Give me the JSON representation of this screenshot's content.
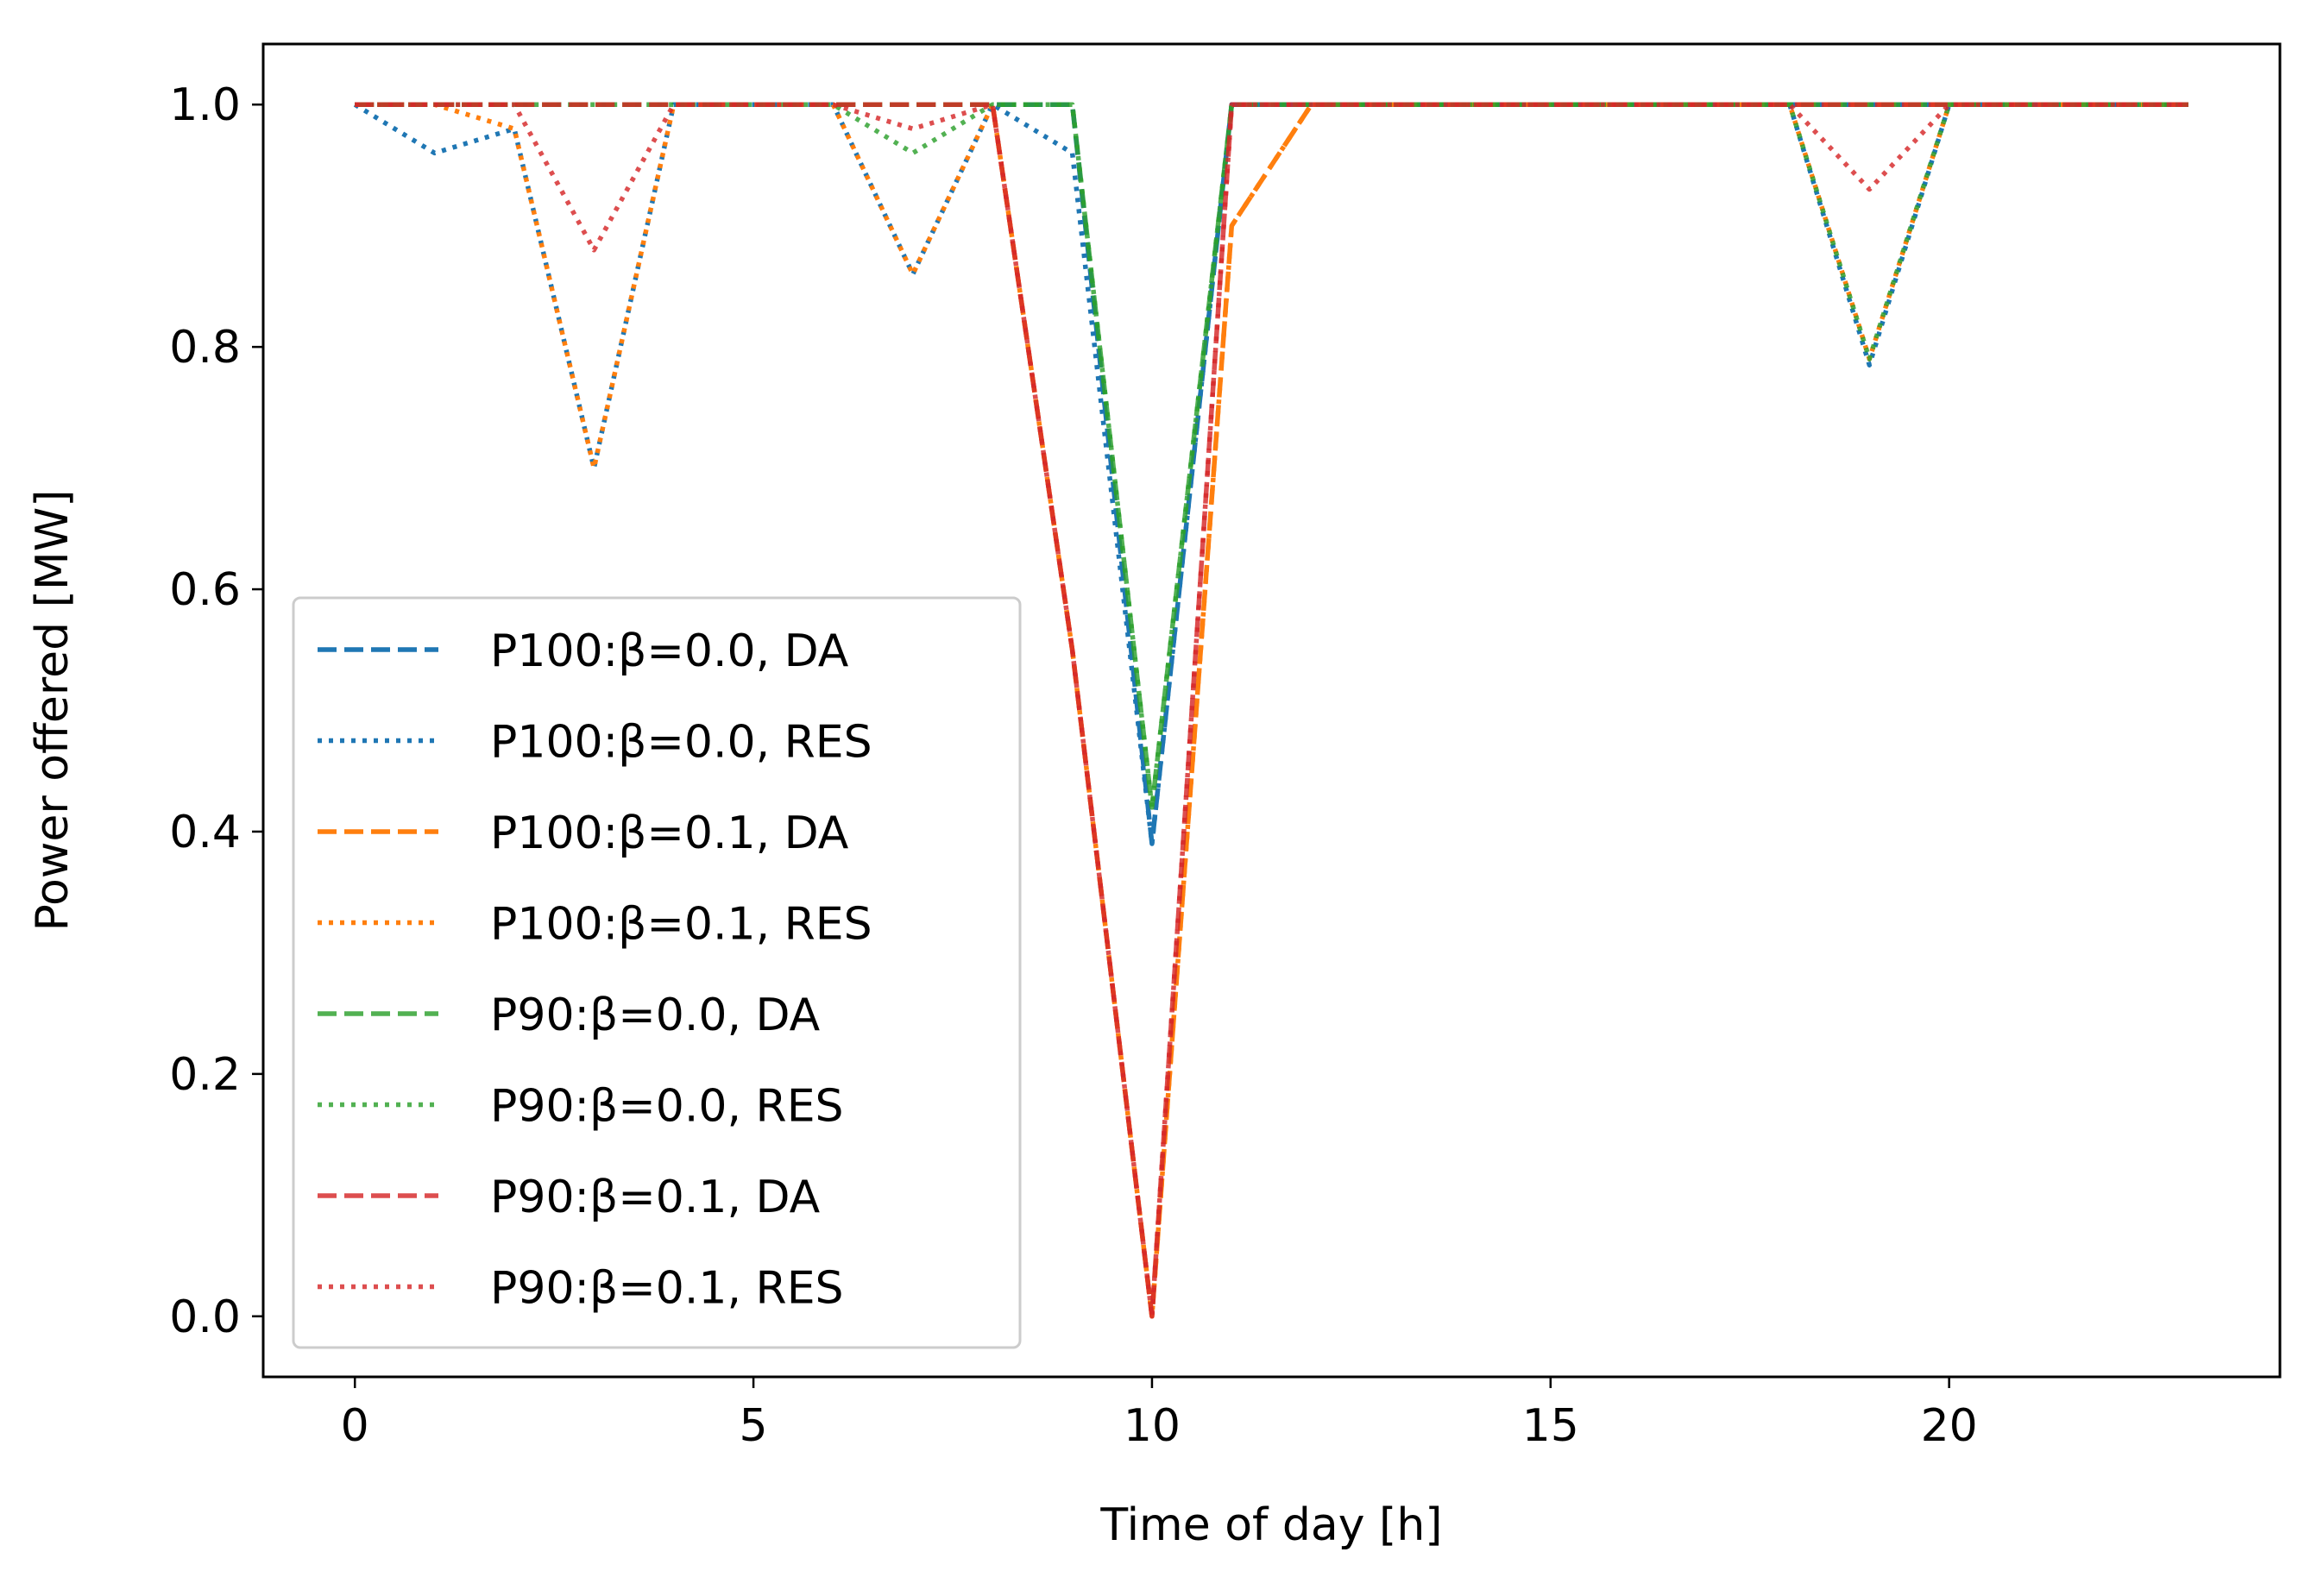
{
  "chart_data": {
    "type": "line",
    "title": "",
    "xlabel": "Time of day [h]",
    "ylabel": "Power offered [MW]",
    "xlim": [
      -1.15,
      24.15
    ],
    "ylim": [
      -0.05,
      1.05
    ],
    "xticks": [
      0,
      5,
      10,
      15,
      20
    ],
    "yticks": [
      0.0,
      0.2,
      0.4,
      0.6,
      0.8,
      1.0
    ],
    "xtick_labels": [
      "0",
      "5",
      "10",
      "15",
      "20"
    ],
    "ytick_labels": [
      "0.0",
      "0.2",
      "0.4",
      "0.6",
      "0.8",
      "1.0"
    ],
    "grid": false,
    "legend_position": "lower-left",
    "x": [
      0,
      1,
      2,
      3,
      4,
      5,
      6,
      7,
      8,
      9,
      10,
      11,
      12,
      13,
      14,
      15,
      16,
      17,
      18,
      19,
      20,
      21,
      22,
      23
    ],
    "series": [
      {
        "name": "P100:β=0.0, DA",
        "color": "#1f77b4",
        "style": "dashed",
        "values": [
          1,
          1,
          1,
          1,
          1,
          1,
          1,
          1,
          1,
          1,
          0.39,
          1,
          1,
          1,
          1,
          1,
          1,
          1,
          1,
          1,
          1,
          1,
          1,
          1
        ]
      },
      {
        "name": "P100:β=0.0, RES",
        "color": "#1f77b4",
        "style": "dotted",
        "values": [
          1,
          0.96,
          0.98,
          0.7,
          1,
          1,
          1,
          0.86,
          1,
          0.96,
          0.39,
          1,
          1,
          1,
          1,
          1,
          1,
          1,
          1,
          0.785,
          1,
          1,
          1,
          1
        ]
      },
      {
        "name": "P100:β=0.1, DA",
        "color": "#ff7f0e",
        "style": "dashed",
        "values": [
          1,
          1,
          1,
          1,
          1,
          1,
          1,
          1,
          1,
          0.55,
          0.0,
          0.9,
          1,
          1,
          1,
          1,
          1,
          1,
          1,
          1,
          1,
          1,
          1,
          1
        ]
      },
      {
        "name": "P100:β=0.1, RES",
        "color": "#ff7f0e",
        "style": "dotted",
        "values": [
          1,
          1,
          0.98,
          0.7,
          1,
          1,
          1,
          0.86,
          1,
          0.55,
          0.0,
          0.9,
          1,
          1,
          1,
          1,
          1,
          1,
          1,
          0.79,
          1,
          1,
          1,
          1
        ]
      },
      {
        "name": "P90:β=0.0, DA",
        "color": "#2ca02c",
        "style": "dashed",
        "values": [
          1,
          1,
          1,
          1,
          1,
          1,
          1,
          1,
          1,
          1,
          0.42,
          1,
          1,
          1,
          1,
          1,
          1,
          1,
          1,
          1,
          1,
          1,
          1,
          1
        ]
      },
      {
        "name": "P90:β=0.0, RES",
        "color": "#2ca02c",
        "style": "dotted",
        "values": [
          1,
          1,
          1,
          1,
          1,
          1,
          1,
          0.96,
          1,
          1,
          0.42,
          1,
          1,
          1,
          1,
          1,
          1,
          1,
          1,
          0.79,
          1,
          1,
          1,
          1
        ]
      },
      {
        "name": "P90:β=0.1, DA",
        "color": "#d62728",
        "style": "dashed",
        "values": [
          1,
          1,
          1,
          1,
          1,
          1,
          1,
          1,
          1,
          0.55,
          0.0,
          1,
          1,
          1,
          1,
          1,
          1,
          1,
          1,
          1,
          1,
          1,
          1,
          1
        ]
      },
      {
        "name": "P90:β=0.1, RES",
        "color": "#d62728",
        "style": "dotted",
        "values": [
          1,
          1,
          1,
          0.88,
          1,
          1,
          1,
          0.98,
          1,
          0.55,
          0.0,
          1,
          1,
          1,
          1,
          1,
          1,
          1,
          1,
          0.93,
          1,
          1,
          1,
          1
        ]
      }
    ]
  }
}
